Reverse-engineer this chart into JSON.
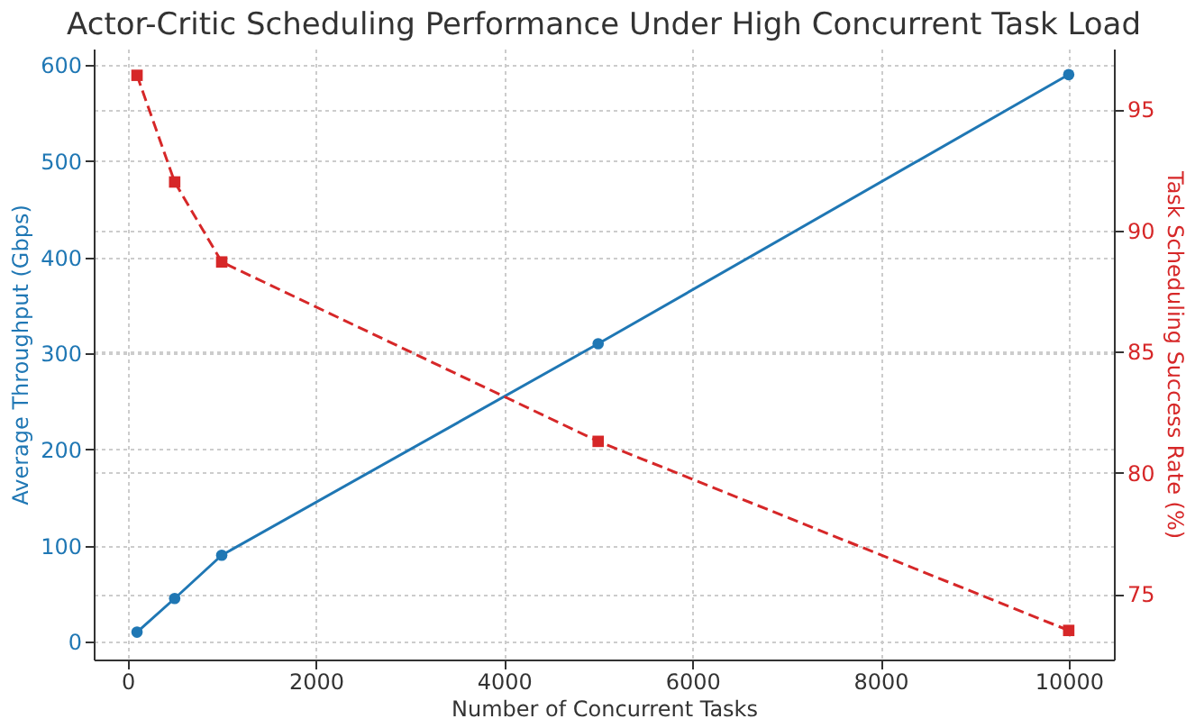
{
  "chart_data": {
    "type": "line",
    "title": "Actor-Critic Scheduling Performance Under High Concurrent Task Load",
    "xlabel": "Number of Concurrent Tasks",
    "ylabel": "Average Throughput (Gbps)",
    "y2label": "Task Scheduling Success Rate (%)",
    "x": [
      100,
      500,
      1000,
      5000,
      10000
    ],
    "series": [
      {
        "color": "#1f77b4",
        "values": [
          10,
          45,
          90,
          310,
          590
        ],
        "marker": "circle",
        "line_style": "solid"
      },
      {
        "color": "#d62728",
        "values": [
          96.4,
          92.0,
          88.7,
          81.3,
          73.5
        ],
        "marker": "square",
        "line_style": "dashed",
        "axis": "y2"
      }
    ],
    "xlim": [
      -360,
      10480
    ],
    "xticks": [
      0,
      2000,
      4000,
      6000,
      8000,
      10000
    ],
    "ylim": [
      -18.5,
      617
    ],
    "yticks": [
      0,
      100,
      200,
      300,
      400,
      500,
      600
    ],
    "y2lim": [
      72.3,
      97.5
    ],
    "y2ticks": [
      75,
      80,
      85,
      90,
      95
    ],
    "grid": true
  }
}
